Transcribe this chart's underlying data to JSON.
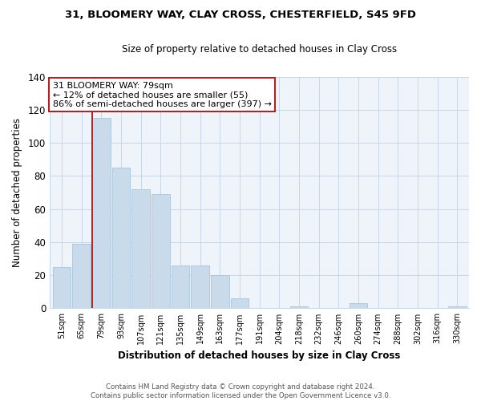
{
  "title1": "31, BLOOMERY WAY, CLAY CROSS, CHESTERFIELD, S45 9FD",
  "title2": "Size of property relative to detached houses in Clay Cross",
  "xlabel": "Distribution of detached houses by size in Clay Cross",
  "ylabel": "Number of detached properties",
  "bar_labels": [
    "51sqm",
    "65sqm",
    "79sqm",
    "93sqm",
    "107sqm",
    "121sqm",
    "135sqm",
    "149sqm",
    "163sqm",
    "177sqm",
    "191sqm",
    "204sqm",
    "218sqm",
    "232sqm",
    "246sqm",
    "260sqm",
    "274sqm",
    "288sqm",
    "302sqm",
    "316sqm",
    "330sqm"
  ],
  "bar_values": [
    25,
    39,
    115,
    85,
    72,
    69,
    26,
    26,
    20,
    6,
    0,
    0,
    1,
    0,
    0,
    3,
    0,
    0,
    0,
    0,
    1
  ],
  "bar_color": "#c9daea",
  "bar_edge_color": "#a8c4d8",
  "vline_x": 2,
  "vline_color": "#b22222",
  "annotation_line1": "31 BLOOMERY WAY: 79sqm",
  "annotation_line2": "← 12% of detached houses are smaller (55)",
  "annotation_line3": "86% of semi-detached houses are larger (397) →",
  "annotation_box_edgecolor": "#b22222",
  "ylim": [
    0,
    140
  ],
  "yticks": [
    0,
    20,
    40,
    60,
    80,
    100,
    120,
    140
  ],
  "plot_bg_color": "#eef4f9",
  "fig_bg_color": "#ffffff",
  "grid_color": "#c8d8e8",
  "footer": "Contains HM Land Registry data © Crown copyright and database right 2024.\nContains public sector information licensed under the Open Government Licence v3.0."
}
